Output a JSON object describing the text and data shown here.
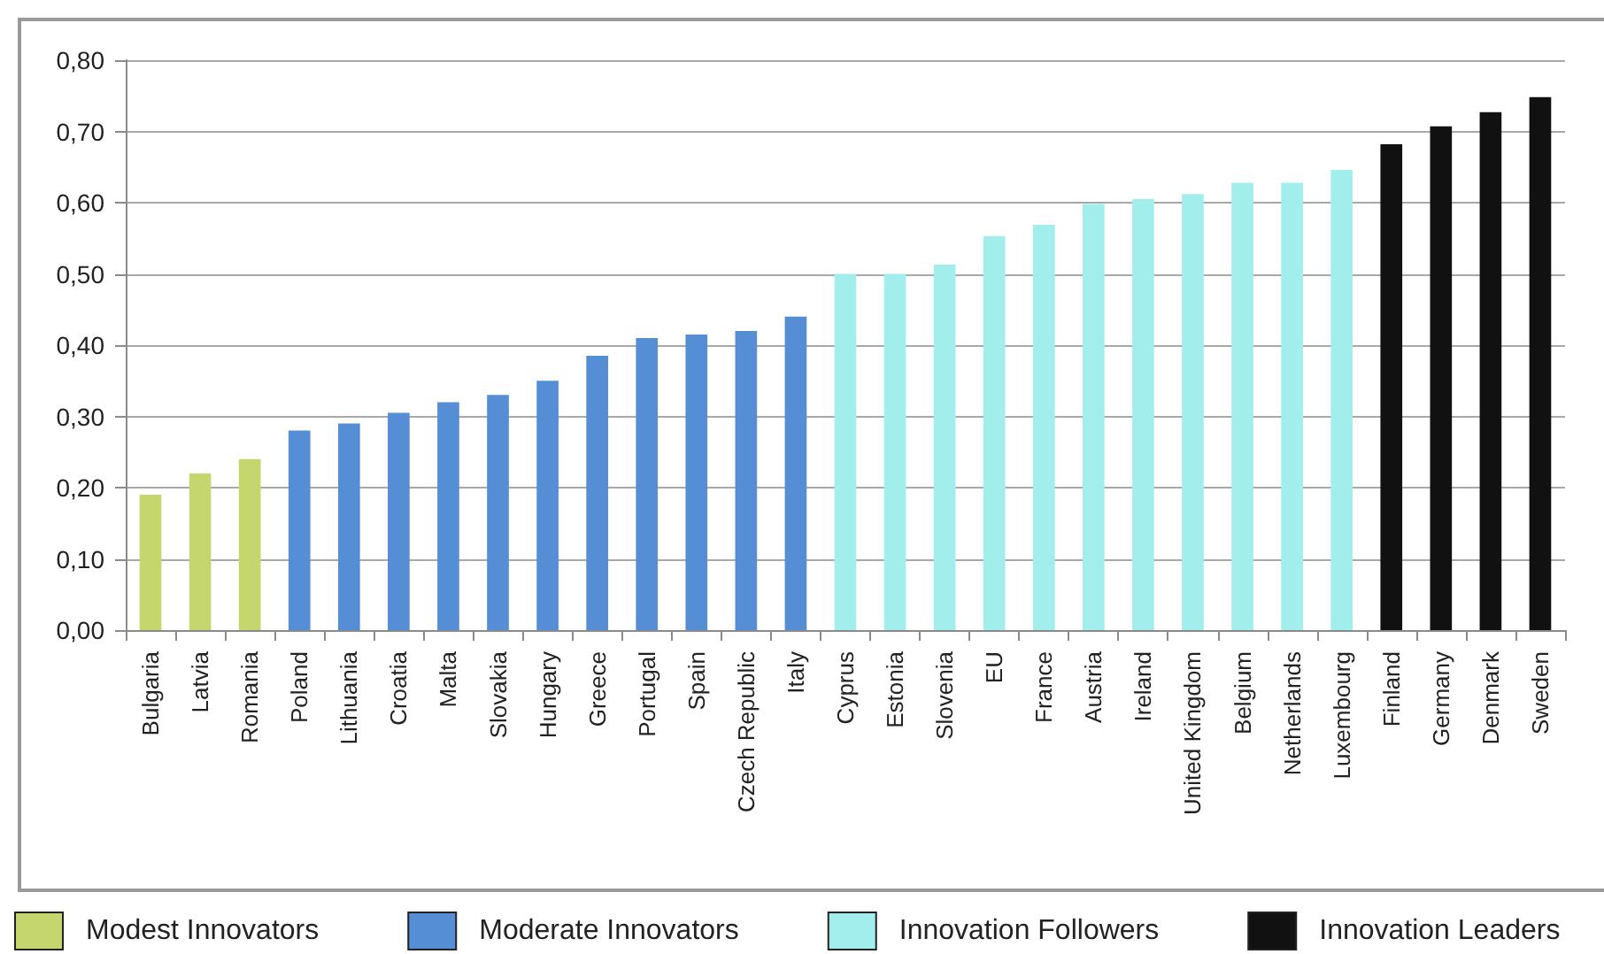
{
  "chart_data": {
    "type": "bar",
    "categories": [
      "Bulgaria",
      "Latvia",
      "Romania",
      "Poland",
      "Lithuania",
      "Croatia",
      "Malta",
      "Slovakia",
      "Hungary",
      "Greece",
      "Portugal",
      "Spain",
      "Czech Republic",
      "Italy",
      "Cyprus",
      "Estonia",
      "Slovenia",
      "EU",
      "France",
      "Austria",
      "Ireland",
      "United Kingdom",
      "Belgium",
      "Netherlands",
      "Luxembourg",
      "Finland",
      "Germany",
      "Denmark",
      "Sweden"
    ],
    "series": [
      {
        "name": "Modest Innovators",
        "color": "#c6d66e",
        "values": [
          0.19,
          0.22,
          0.24,
          null,
          null,
          null,
          null,
          null,
          null,
          null,
          null,
          null,
          null,
          null,
          null,
          null,
          null,
          null,
          null,
          null,
          null,
          null,
          null,
          null,
          null,
          null,
          null,
          null,
          null
        ]
      },
      {
        "name": "Moderate Innovators",
        "color": "#558ed5",
        "values": [
          null,
          null,
          null,
          0.28,
          0.29,
          0.305,
          0.32,
          0.33,
          0.35,
          0.385,
          0.41,
          0.415,
          0.42,
          0.44,
          null,
          null,
          null,
          null,
          null,
          null,
          null,
          null,
          null,
          null,
          null,
          null,
          null,
          null,
          null
        ]
      },
      {
        "name": "Innovation Followers",
        "color": "#a2eeec",
        "values": [
          null,
          null,
          null,
          null,
          null,
          null,
          null,
          null,
          null,
          null,
          null,
          null,
          null,
          null,
          0.5,
          0.5,
          0.513,
          0.553,
          0.569,
          0.598,
          0.605,
          0.612,
          0.628,
          0.628,
          0.646,
          null,
          null,
          null,
          null
        ]
      },
      {
        "name": "Innovation Leaders",
        "color": "#111111",
        "values": [
          null,
          null,
          null,
          null,
          null,
          null,
          null,
          null,
          null,
          null,
          null,
          null,
          null,
          null,
          null,
          null,
          null,
          null,
          null,
          null,
          null,
          null,
          null,
          null,
          null,
          0.682,
          0.707,
          0.727,
          0.748
        ]
      }
    ],
    "ylim": [
      0,
      0.8
    ],
    "yticks": [
      {
        "value": 0,
        "label": "0,00"
      },
      {
        "value": 0.1,
        "label": "0,10"
      },
      {
        "value": 0.2,
        "label": "0,20"
      },
      {
        "value": 0.3,
        "label": "0,30"
      },
      {
        "value": 0.4,
        "label": "0,40"
      },
      {
        "value": 0.5,
        "label": "0,50"
      },
      {
        "value": 0.6,
        "label": "0,60"
      },
      {
        "value": 0.7,
        "label": "0,70"
      },
      {
        "value": 0.8,
        "label": "0,80"
      }
    ],
    "grid": "y",
    "legend": "bottom"
  }
}
